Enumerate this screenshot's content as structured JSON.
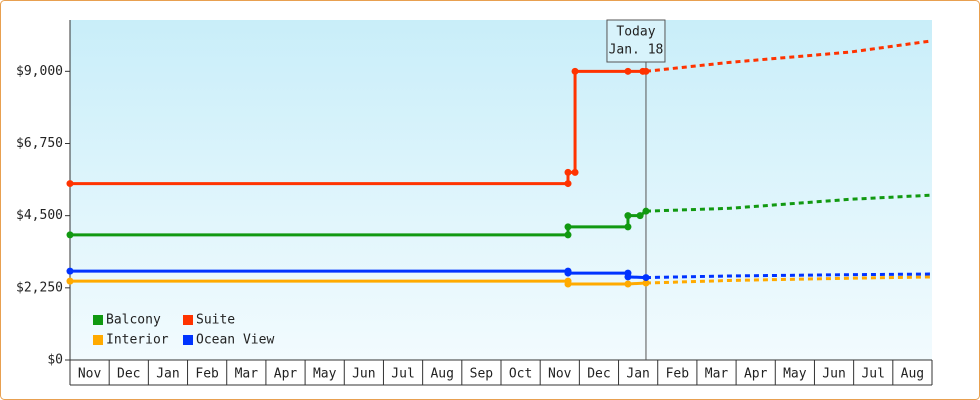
{
  "chart_data": {
    "type": "line",
    "months": [
      "Nov",
      "Dec",
      "Jan",
      "Feb",
      "Mar",
      "Apr",
      "May",
      "Jun",
      "Jul",
      "Aug",
      "Sep",
      "Oct",
      "Nov",
      "Dec",
      "Jan",
      "Feb",
      "Mar",
      "Apr",
      "May",
      "Jun",
      "Jul",
      "Aug"
    ],
    "xlim": [
      0,
      22
    ],
    "ylim": [
      0,
      10600
    ],
    "yticks": [
      {
        "value": 0,
        "label": "$0"
      },
      {
        "value": 2250,
        "label": "$2,250"
      },
      {
        "value": 4500,
        "label": "$4,500"
      },
      {
        "value": 6750,
        "label": "$6,750"
      },
      {
        "value": 9000,
        "label": "$9,000"
      }
    ],
    "annotation": {
      "title": "Today",
      "date": "Jan. 18",
      "x": 14.7
    },
    "series": [
      {
        "name": "Balcony",
        "color": "#119911",
        "x": [
          0,
          12.71,
          12.71,
          14.24,
          14.24,
          14.55,
          14.7
        ],
        "values": [
          3900,
          3900,
          4150,
          4150,
          4500,
          4500,
          4640
        ],
        "forecast_x": [
          14.7,
          16.84,
          19.91,
          22
        ],
        "forecast_values": [
          4640,
          4730,
          5010,
          5140
        ]
      },
      {
        "name": "Suite",
        "color": "#ff3300",
        "x": [
          0,
          12.71,
          12.71,
          12.89,
          12.89,
          14.24,
          14.62,
          14.7
        ],
        "values": [
          5500,
          5500,
          5850,
          5850,
          9000,
          9000,
          9000,
          9000
        ],
        "forecast_x": [
          14.7,
          16.84,
          19.91,
          22
        ],
        "forecast_values": [
          9000,
          9280,
          9600,
          9950
        ]
      },
      {
        "name": "Interior",
        "color": "#ffaa00",
        "x": [
          0,
          12.71,
          12.71,
          14.24,
          14.7
        ],
        "values": [
          2460,
          2460,
          2370,
          2370,
          2400
        ],
        "forecast_x": [
          14.7,
          16.84,
          19.91,
          22
        ],
        "forecast_values": [
          2400,
          2480,
          2550,
          2590
        ]
      },
      {
        "name": "Ocean View",
        "color": "#0033ff",
        "x": [
          0,
          12.71,
          12.71,
          14.24,
          14.24,
          14.7
        ],
        "values": [
          2770,
          2770,
          2710,
          2710,
          2590,
          2570
        ],
        "forecast_x": [
          14.7,
          16.84,
          19.91,
          22
        ],
        "forecast_values": [
          2570,
          2620,
          2660,
          2680
        ]
      }
    ]
  }
}
